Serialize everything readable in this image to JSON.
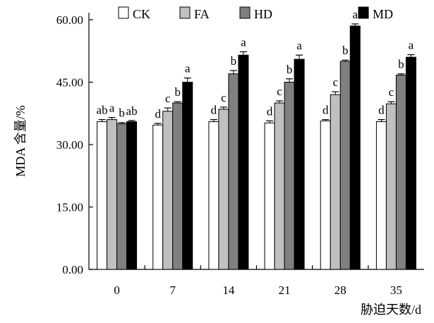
{
  "chart_data": {
    "type": "bar",
    "ylabel": "MDA 含量/%",
    "xlabel": "胁迫天数/d",
    "ylim": [
      0,
      60
    ],
    "yticks": [
      "0.00",
      "15.00",
      "30.00",
      "45.00",
      "60.00"
    ],
    "categories": [
      "0",
      "7",
      "14",
      "21",
      "28",
      "35"
    ],
    "legend_position": "top",
    "series": [
      {
        "name": "CK",
        "color": "#ffffff",
        "values": [
          35.5,
          34.7,
          35.5,
          35.2,
          35.7,
          35.5
        ],
        "errors": [
          0.5,
          0.4,
          0.5,
          0.5,
          0.3,
          0.5
        ],
        "labels": [
          "ab",
          "d",
          "d",
          "d",
          "d",
          "d"
        ]
      },
      {
        "name": "FA",
        "color": "#c0c0c0",
        "values": [
          36.0,
          38.0,
          38.5,
          40.0,
          42.0,
          39.8
        ],
        "errors": [
          0.5,
          0.8,
          0.5,
          0.5,
          0.7,
          0.5
        ],
        "labels": [
          "a",
          "c",
          "c",
          "c",
          "c",
          "c"
        ]
      },
      {
        "name": "HD",
        "color": "#808080",
        "values": [
          35.0,
          40.0,
          47.0,
          45.0,
          50.0,
          46.7
        ],
        "errors": [
          0.3,
          0.3,
          0.8,
          0.8,
          0.3,
          0.3
        ],
        "labels": [
          "b",
          "b",
          "b",
          "b",
          "b",
          "b"
        ]
      },
      {
        "name": "MD",
        "color": "#000000",
        "values": [
          35.5,
          45.0,
          51.5,
          50.5,
          58.5,
          51.0
        ],
        "errors": [
          0.3,
          1.0,
          0.8,
          1.0,
          0.5,
          0.6
        ],
        "labels": [
          "ab",
          "a",
          "a",
          "a",
          "a",
          "a"
        ]
      }
    ]
  }
}
